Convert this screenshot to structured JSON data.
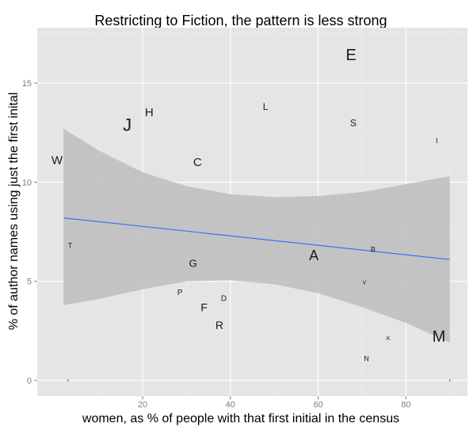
{
  "chart_data": {
    "type": "scatter",
    "title": "Restricting to Fiction, the pattern is less strong",
    "xlabel": "women, as % of people with that first initial in the census",
    "ylabel": "% of author names using just the first inital",
    "xlim": [
      -4,
      94
    ],
    "ylim": [
      -0.8,
      17.8
    ],
    "xticks": [
      20,
      40,
      60,
      80
    ],
    "yticks": [
      0,
      5,
      10,
      15
    ],
    "grid": true,
    "colors": {
      "panel": "#e5e5e5",
      "grid_major": "#ffffff",
      "grid_minor": "#f2f2f2",
      "ribbon": "#bdbdbd",
      "line": "#3366ff",
      "text": "#1a1a1a"
    },
    "trend": {
      "x": [
        2,
        90
      ],
      "y": [
        8.2,
        6.1
      ]
    },
    "confidence_band": {
      "x": [
        2,
        10,
        20,
        30,
        40,
        50,
        60,
        70,
        80,
        90
      ],
      "upper": [
        12.7,
        11.6,
        10.5,
        9.8,
        9.4,
        9.25,
        9.3,
        9.5,
        9.9,
        10.3
      ],
      "lower": [
        3.8,
        4.1,
        4.6,
        5.0,
        5.05,
        4.85,
        4.4,
        3.7,
        2.9,
        1.9
      ]
    },
    "points": [
      {
        "label": "E",
        "x": 67.5,
        "y": 16.4,
        "size": 20
      },
      {
        "label": "W",
        "x": 0.5,
        "y": 11.1,
        "size": 15
      },
      {
        "label": "J",
        "x": 16.5,
        "y": 12.9,
        "size": 22
      },
      {
        "label": "H",
        "x": 21.5,
        "y": 13.5,
        "size": 15
      },
      {
        "label": "L",
        "x": 48.0,
        "y": 13.8,
        "size": 12
      },
      {
        "label": "S",
        "x": 68.0,
        "y": 13.0,
        "size": 12
      },
      {
        "label": "C",
        "x": 32.5,
        "y": 11.0,
        "size": 15
      },
      {
        "label": "I",
        "x": 87.0,
        "y": 12.1,
        "size": 9
      },
      {
        "label": "T",
        "x": 3.5,
        "y": 6.8,
        "size": 9
      },
      {
        "label": "G",
        "x": 31.5,
        "y": 5.9,
        "size": 13
      },
      {
        "label": "A",
        "x": 59.0,
        "y": 6.3,
        "size": 18
      },
      {
        "label": "B",
        "x": 72.5,
        "y": 6.6,
        "size": 9
      },
      {
        "label": "V",
        "x": 70.5,
        "y": 4.9,
        "size": 7
      },
      {
        "label": "P",
        "x": 28.5,
        "y": 4.4,
        "size": 10
      },
      {
        "label": "D",
        "x": 38.5,
        "y": 4.1,
        "size": 10
      },
      {
        "label": "F",
        "x": 34.0,
        "y": 3.7,
        "size": 14
      },
      {
        "label": "R",
        "x": 37.5,
        "y": 2.8,
        "size": 14
      },
      {
        "label": "K",
        "x": 76.0,
        "y": 2.1,
        "size": 7
      },
      {
        "label": "M",
        "x": 87.5,
        "y": 2.2,
        "size": 20
      },
      {
        "label": "N",
        "x": 71.0,
        "y": 1.1,
        "size": 9
      },
      {
        "label": "",
        "x": 3.0,
        "y": 0.0,
        "size": 5
      },
      {
        "label": "",
        "x": 90.0,
        "y": 0.0,
        "size": 5
      }
    ]
  }
}
